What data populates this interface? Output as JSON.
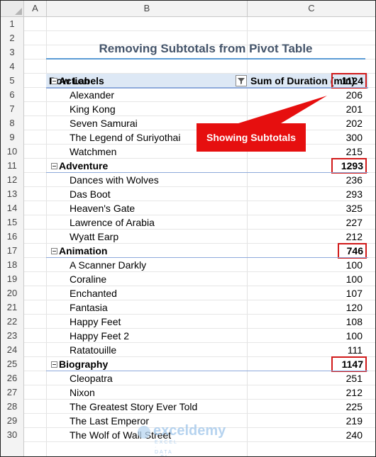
{
  "spreadsheet": {
    "columns": [
      "A",
      "B",
      "C"
    ],
    "rows": [
      "1",
      "2",
      "3",
      "4",
      "5",
      "6",
      "7",
      "8",
      "9",
      "10",
      "11",
      "12",
      "13",
      "14",
      "15",
      "16",
      "17",
      "18",
      "19",
      "20",
      "21",
      "22",
      "23",
      "24",
      "25",
      "26",
      "27",
      "28",
      "29",
      "30"
    ]
  },
  "title": "Removing Subtotals from Pivot Table",
  "pivot": {
    "row_labels_header": "Row Labels",
    "value_header": "Sum of Duration (min)",
    "filter_icon": "filter-icon",
    "collapse_icon": "collapse-minus-icon",
    "categories": [
      {
        "name": "Action",
        "subtotal": "1124",
        "items": [
          {
            "label": "Alexander",
            "value": "206"
          },
          {
            "label": "King Kong",
            "value": "201"
          },
          {
            "label": "Seven Samurai",
            "value": "202"
          },
          {
            "label": "The Legend of Suriyothai",
            "value": "300"
          },
          {
            "label": "Watchmen",
            "value": "215"
          }
        ]
      },
      {
        "name": "Adventure",
        "subtotal": "1293",
        "items": [
          {
            "label": "Dances with Wolves",
            "value": "236"
          },
          {
            "label": "Das Boot",
            "value": "293"
          },
          {
            "label": "Heaven's Gate",
            "value": "325"
          },
          {
            "label": "Lawrence of Arabia",
            "value": "227"
          },
          {
            "label": "Wyatt Earp",
            "value": "212"
          }
        ]
      },
      {
        "name": "Animation",
        "subtotal": "746",
        "items": [
          {
            "label": "A Scanner Darkly",
            "value": "100"
          },
          {
            "label": "Coraline",
            "value": "100"
          },
          {
            "label": "Enchanted",
            "value": "107"
          },
          {
            "label": "Fantasia",
            "value": "120"
          },
          {
            "label": "Happy Feet",
            "value": "108"
          },
          {
            "label": "Happy Feet 2",
            "value": "100"
          },
          {
            "label": "Ratatouille",
            "value": "111"
          }
        ]
      },
      {
        "name": "Biography",
        "subtotal": "1147",
        "items": [
          {
            "label": "Cleopatra",
            "value": "251"
          },
          {
            "label": "Nixon",
            "value": "212"
          },
          {
            "label": "The Greatest Story Ever Told",
            "value": "225"
          },
          {
            "label": "The Last Emperor",
            "value": "219"
          },
          {
            "label": "The Wolf of Wall Street",
            "value": "240"
          }
        ]
      }
    ]
  },
  "callout": "Showing Subtotals",
  "watermark": {
    "name": "exceldemy",
    "sub": "EXCEL · DATA · BI"
  },
  "colors": {
    "accent_blue": "#5b9bd5",
    "title_color": "#44546a",
    "highlight_red": "#d11a1a",
    "callout_red": "#e60f0f"
  }
}
